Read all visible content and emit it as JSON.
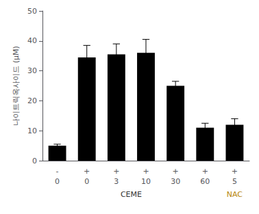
{
  "chart_data": {
    "type": "bar",
    "ylabel": "나이트릭옥사이드 (μM)",
    "categories": [
      "-\n0",
      "+\n0",
      "+\n3",
      "+\n10",
      "+\n30",
      "+\n60",
      "+\n5"
    ],
    "values": [
      5.0,
      34.5,
      35.5,
      36.0,
      25.0,
      11.0,
      12.0
    ],
    "errors": [
      0.5,
      4.0,
      3.5,
      4.5,
      1.5,
      1.5,
      2.0
    ],
    "color": "#000000",
    "ylim": [
      0,
      50
    ],
    "yticks": [
      0,
      10,
      20,
      30,
      40,
      50
    ],
    "grid": false,
    "annotations": [
      {
        "text": "CEME"
      },
      {
        "text": "NAC",
        "color": "#b8860b"
      }
    ]
  }
}
